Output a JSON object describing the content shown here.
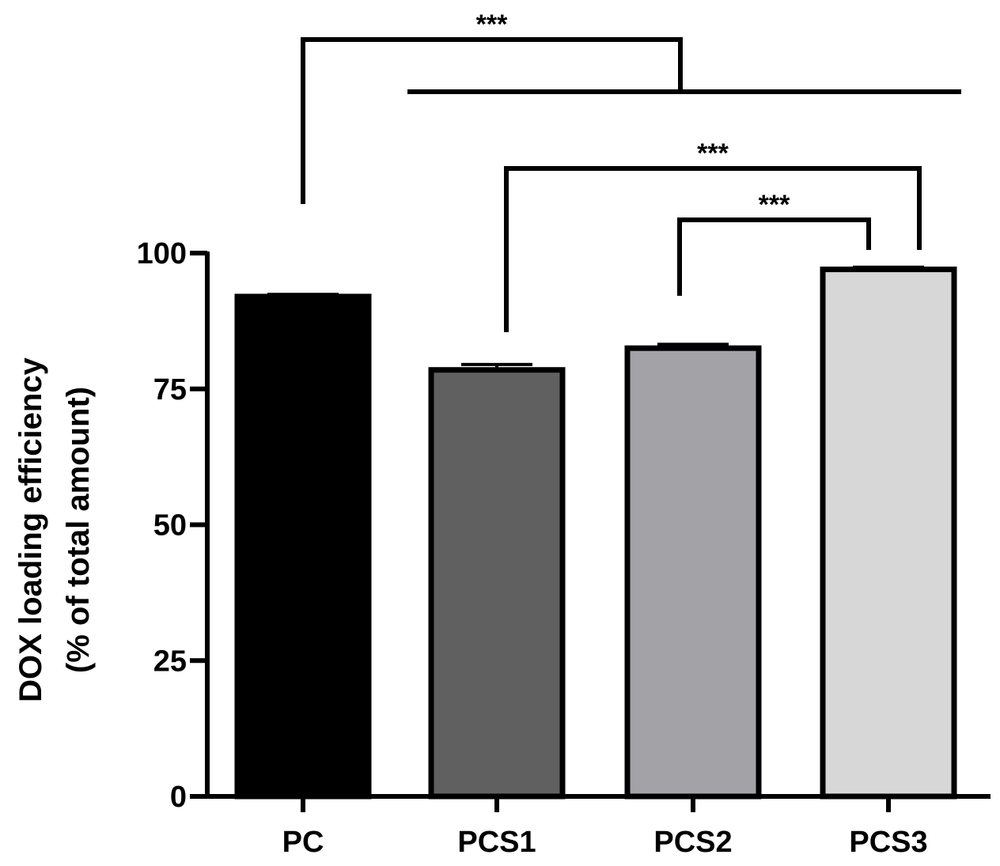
{
  "chart_data": {
    "type": "bar",
    "categories": [
      "PC",
      "PCS1",
      "PCS2",
      "PCS3"
    ],
    "values": [
      92,
      78.5,
      82.5,
      97
    ],
    "errors": [
      0.4,
      1.0,
      0.7,
      0.4
    ],
    "colors": [
      "#000000",
      "#606060",
      "#a3a2a7",
      "#d7d7d7"
    ],
    "ylabel_line1": "DOX loading efficiency",
    "ylabel_line2": "(% of total amount)",
    "ylim": [
      0,
      100
    ],
    "yticks": [
      "0",
      "25",
      "50",
      "75",
      "100"
    ],
    "grid": false,
    "significance": [
      {
        "from": "PC",
        "to": [
          "PCS1",
          "PCS2",
          "PCS3"
        ],
        "label": "***"
      },
      {
        "from": "PCS1",
        "to": [
          "PCS3"
        ],
        "label": "***"
      },
      {
        "from": "PCS2",
        "to": [
          "PCS3"
        ],
        "label": "***"
      }
    ]
  }
}
